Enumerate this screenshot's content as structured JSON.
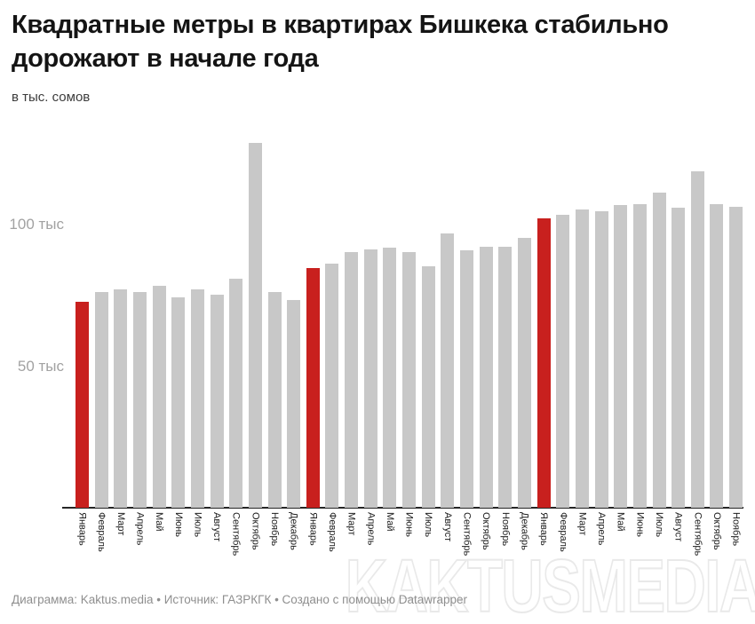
{
  "header": {
    "title": "Квадратные метры в квартирах Бишкека стабильно дорожают в начале года",
    "subtitle": "в тыс. сомов"
  },
  "chart_data": {
    "type": "bar",
    "title": "Квадратные метры в квартирах Бишкека стабильно дорожают в начале года",
    "ylabel": "в тыс. сомов",
    "ylim": [
      0,
      138
    ],
    "grid": false,
    "bar_color": "#c8c8c8",
    "highlight_color": "#c8201e",
    "yticks": [
      {
        "value": 50,
        "label": "50 тыс"
      },
      {
        "value": 100,
        "label": "100 тыс"
      }
    ],
    "bars": [
      {
        "label": "Январь",
        "value": 72.5,
        "highlight": true
      },
      {
        "label": "Февраль",
        "value": 76,
        "highlight": false
      },
      {
        "label": "Март",
        "value": 77,
        "highlight": false
      },
      {
        "label": "Апрель",
        "value": 76,
        "highlight": false
      },
      {
        "label": "Май",
        "value": 78,
        "highlight": false
      },
      {
        "label": "Июнь",
        "value": 74,
        "highlight": false
      },
      {
        "label": "Июль",
        "value": 77,
        "highlight": false
      },
      {
        "label": "Август",
        "value": 75,
        "highlight": false
      },
      {
        "label": "Сентябрь",
        "value": 80.5,
        "highlight": false
      },
      {
        "label": "Октябрь",
        "value": 128.5,
        "highlight": false
      },
      {
        "label": "Ноябрь",
        "value": 76,
        "highlight": false
      },
      {
        "label": "Декабрь",
        "value": 73,
        "highlight": false
      },
      {
        "label": "Январь",
        "value": 84.5,
        "highlight": true
      },
      {
        "label": "Февраль",
        "value": 86,
        "highlight": false
      },
      {
        "label": "Март",
        "value": 90,
        "highlight": false
      },
      {
        "label": "Апрель",
        "value": 91,
        "highlight": false
      },
      {
        "label": "Май",
        "value": 91.5,
        "highlight": false
      },
      {
        "label": "Июнь",
        "value": 90,
        "highlight": false
      },
      {
        "label": "Июль",
        "value": 85,
        "highlight": false
      },
      {
        "label": "Август",
        "value": 96.5,
        "highlight": false
      },
      {
        "label": "Сентябрь",
        "value": 90.5,
        "highlight": false
      },
      {
        "label": "Октябрь",
        "value": 92,
        "highlight": false
      },
      {
        "label": "Ноябрь",
        "value": 92,
        "highlight": false
      },
      {
        "label": "Декабрь",
        "value": 95,
        "highlight": false
      },
      {
        "label": "Январь",
        "value": 102,
        "highlight": true
      },
      {
        "label": "Февраль",
        "value": 103,
        "highlight": false
      },
      {
        "label": "Март",
        "value": 105,
        "highlight": false
      },
      {
        "label": "Апрель",
        "value": 104.5,
        "highlight": false
      },
      {
        "label": "Май",
        "value": 106.5,
        "highlight": false
      },
      {
        "label": "Июнь",
        "value": 107,
        "highlight": false
      },
      {
        "label": "Июль",
        "value": 111,
        "highlight": false
      },
      {
        "label": "Август",
        "value": 105.5,
        "highlight": false
      },
      {
        "label": "Сентябрь",
        "value": 118.5,
        "highlight": false
      },
      {
        "label": "Октябрь",
        "value": 107,
        "highlight": false
      },
      {
        "label": "Ноябрь",
        "value": 106,
        "highlight": false
      }
    ]
  },
  "footer": {
    "credit": "Диаграмма: Kaktus.media • Источник: ГАЗРКГК • Создано с помощью Datawrapper"
  },
  "watermark": "KAKTUSMEDIA"
}
